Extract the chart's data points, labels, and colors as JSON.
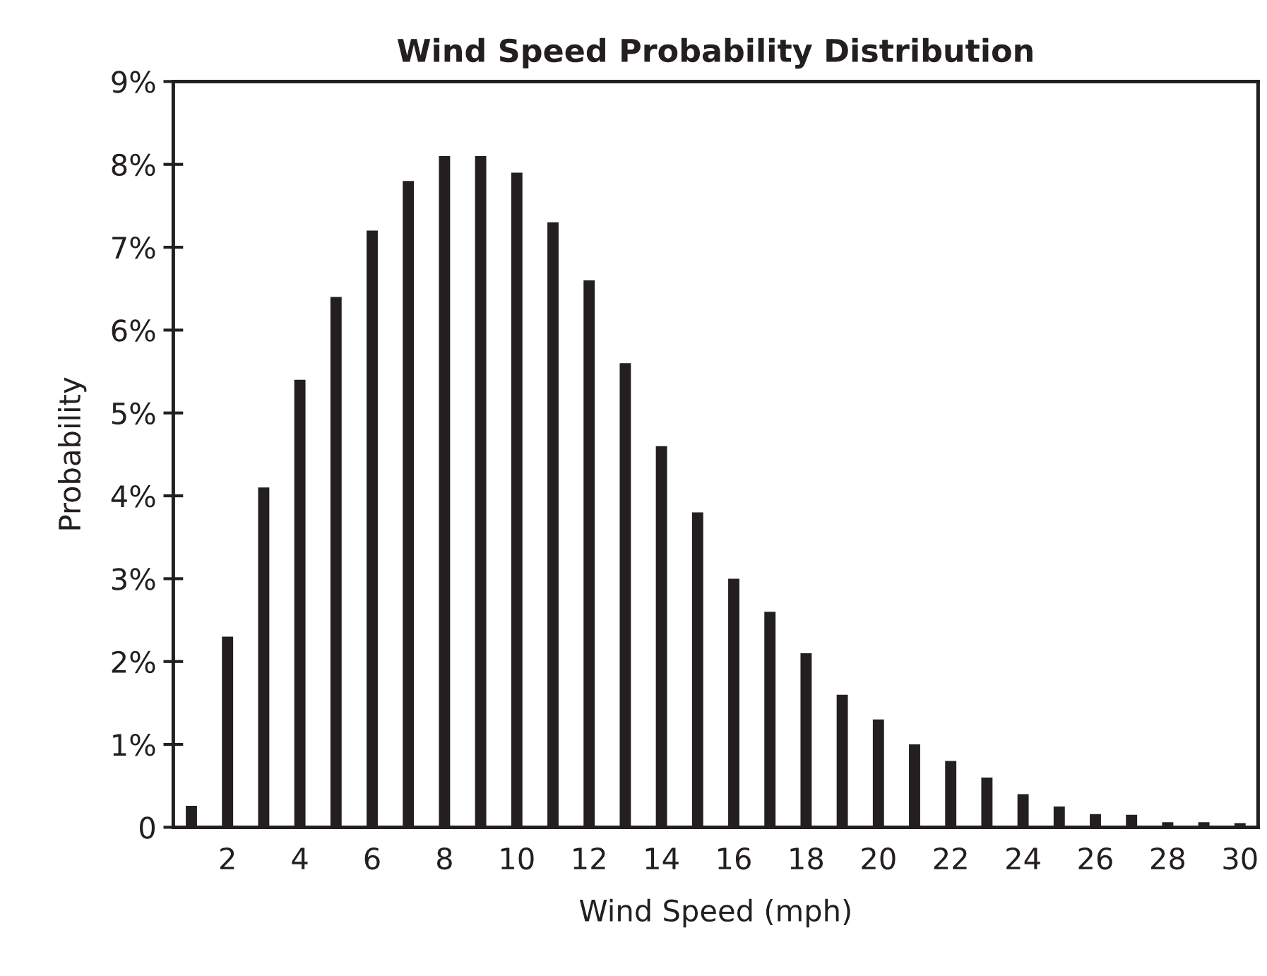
{
  "chart_data": {
    "type": "bar",
    "title": "Wind Speed Probability Distribution",
    "xlabel": "Wind Speed (mph)",
    "ylabel": "Probability",
    "color": "#231f20",
    "x": [
      1,
      2,
      3,
      4,
      5,
      6,
      7,
      8,
      9,
      10,
      11,
      12,
      13,
      14,
      15,
      16,
      17,
      18,
      19,
      20,
      21,
      22,
      23,
      24,
      25,
      26,
      27,
      28,
      29,
      30
    ],
    "values": [
      0.26,
      2.3,
      4.1,
      5.4,
      6.4,
      7.2,
      7.8,
      8.1,
      8.1,
      7.9,
      7.3,
      6.6,
      5.6,
      4.6,
      3.8,
      3.0,
      2.6,
      2.1,
      1.6,
      1.3,
      1.0,
      0.8,
      0.6,
      0.4,
      0.25,
      0.16,
      0.15,
      0.06,
      0.06,
      0.05
    ],
    "xlim": [
      0.5,
      30.5
    ],
    "xticks": [
      2,
      4,
      6,
      8,
      10,
      12,
      14,
      16,
      18,
      20,
      22,
      24,
      26,
      28,
      30
    ],
    "ylim": [
      0,
      9
    ],
    "yticks": [
      0,
      {
        "value": 1,
        "label": "1%"
      },
      {
        "value": 2,
        "label": "2%"
      },
      {
        "value": 3,
        "label": "3%"
      },
      {
        "value": 4,
        "label": "4%"
      },
      {
        "value": 5,
        "label": "5%"
      },
      {
        "value": 6,
        "label": "6%"
      },
      {
        "value": 7,
        "label": "7%"
      },
      {
        "value": 8,
        "label": "8%"
      },
      {
        "value": 9,
        "label": "9%"
      }
    ],
    "grid": false,
    "legend": false
  }
}
